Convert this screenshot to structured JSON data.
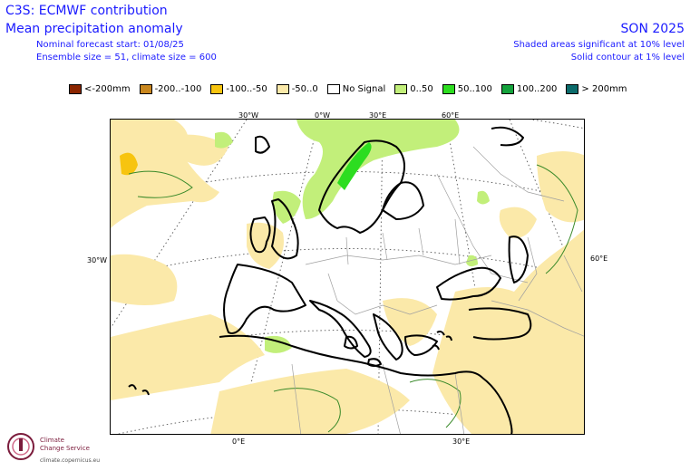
{
  "header": {
    "title": "C3S: ECMWF contribution",
    "subtitle": "Mean precipitation anomaly",
    "forecast_start": "Nominal forecast start: 01/08/25",
    "ensemble": "Ensemble size = 51, climate size = 600",
    "season": "SON 2025",
    "significance_shaded": "Shaded areas significant at 10% level",
    "significance_contour": "Solid contour at 1% level"
  },
  "legend": {
    "items": [
      {
        "label": "<-200mm",
        "color": "#8b2500"
      },
      {
        "label": "-200..-100",
        "color": "#c9871e"
      },
      {
        "label": "-100..-50",
        "color": "#f7c40f"
      },
      {
        "label": "-50..0",
        "color": "#fbe9a9"
      },
      {
        "label": "No Signal",
        "color": "#ffffff"
      },
      {
        "label": "0..50",
        "color": "#c2ef7a"
      },
      {
        "label": "50..100",
        "color": "#2ddd20"
      },
      {
        "label": "100..200",
        "color": "#14a23c"
      },
      {
        "label": "> 200mm",
        "color": "#0b6b6b"
      }
    ]
  },
  "map": {
    "top_ticks": [
      "30°W",
      "0°W",
      "30°E",
      "60°E"
    ],
    "left_tick": "30°W",
    "right_tick": "60°E",
    "bottom_ticks": [
      "0°E",
      "30°E"
    ],
    "colors": {
      "land_outline": "#000000",
      "border": "#a0a0a0",
      "graticule": "#555555",
      "dry": "#fbe9a9",
      "dry_strong": "#f7c40f",
      "wet": "#c2ef7a",
      "wet_strong": "#2ddd20",
      "contour": "#3a8a2a"
    }
  },
  "logo": {
    "line1": "Climate",
    "line2": "Change Service",
    "url": "climate.copernicus.eu"
  }
}
